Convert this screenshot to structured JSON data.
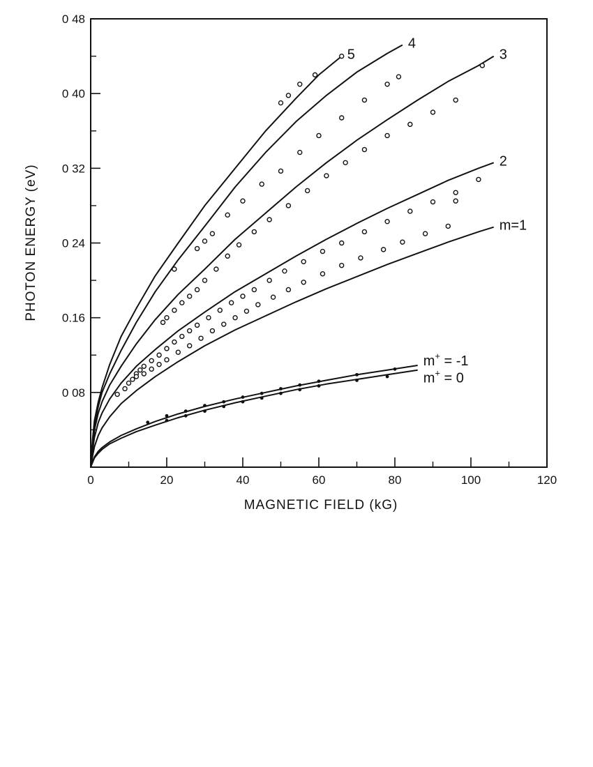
{
  "chart_data": {
    "type": "scatter",
    "title": "",
    "xlabel": "MAGNETIC FIELD (kG)",
    "ylabel": "PHOTON ENERGY (eV)",
    "xlim": [
      0,
      120
    ],
    "ylim": [
      0,
      0.48
    ],
    "x_ticks": [
      0,
      20,
      40,
      60,
      80,
      100,
      120
    ],
    "x_tick_labels": [
      "0",
      "20",
      "40",
      "60",
      "80",
      "100",
      "120"
    ],
    "y_ticks": [
      0.08,
      0.16,
      0.24,
      0.32,
      0.4,
      0.48
    ],
    "y_tick_labels": [
      "0 08",
      "0.16",
      "0 24",
      "0 32",
      "0 40",
      "0 48"
    ],
    "grid": false,
    "legend": "none (curves labelled at their right ends)",
    "series": [
      {
        "label": "5",
        "marker": "open-circle",
        "fit_curve": {
          "x": [
            0,
            0.5,
            1,
            2,
            3,
            5,
            8,
            12,
            17,
            23,
            30,
            38,
            46,
            54,
            60,
            66
          ],
          "y": [
            0.0,
            0.03,
            0.05,
            0.07,
            0.085,
            0.11,
            0.14,
            0.17,
            0.205,
            0.24,
            0.28,
            0.32,
            0.36,
            0.395,
            0.42,
            0.44
          ]
        },
        "points": [
          [
            50,
            0.39
          ],
          [
            52,
            0.398
          ],
          [
            55,
            0.41
          ],
          [
            59,
            0.42
          ],
          [
            66,
            0.44
          ]
        ]
      },
      {
        "label": "4",
        "marker": "open-circle",
        "fit_curve": {
          "x": [
            0,
            0.5,
            1,
            2,
            3,
            5,
            8,
            12,
            17,
            23,
            30,
            38,
            46,
            54,
            62,
            70,
            78,
            82
          ],
          "y": [
            0.0,
            0.025,
            0.045,
            0.065,
            0.08,
            0.1,
            0.125,
            0.155,
            0.188,
            0.222,
            0.258,
            0.3,
            0.337,
            0.37,
            0.398,
            0.423,
            0.443,
            0.452
          ]
        },
        "points": [
          [
            22,
            0.212
          ],
          [
            28,
            0.234
          ],
          [
            30,
            0.242
          ],
          [
            32,
            0.25
          ],
          [
            36,
            0.27
          ],
          [
            40,
            0.285
          ],
          [
            45,
            0.303
          ],
          [
            50,
            0.317
          ],
          [
            55,
            0.337
          ],
          [
            60,
            0.355
          ],
          [
            66,
            0.374
          ],
          [
            72,
            0.393
          ],
          [
            78,
            0.41
          ],
          [
            81,
            0.418
          ]
        ]
      },
      {
        "label": "3",
        "marker": "open-circle",
        "fit_curve": {
          "x": [
            0,
            0.5,
            1,
            2,
            3,
            5,
            8,
            12,
            17,
            23,
            30,
            38,
            46,
            54,
            62,
            70,
            78,
            86,
            94,
            102,
            106
          ],
          "y": [
            0.0,
            0.02,
            0.04,
            0.058,
            0.07,
            0.088,
            0.108,
            0.132,
            0.158,
            0.185,
            0.212,
            0.244,
            0.272,
            0.3,
            0.326,
            0.35,
            0.372,
            0.393,
            0.413,
            0.43,
            0.44
          ]
        },
        "points": [
          [
            19,
            0.155
          ],
          [
            20,
            0.16
          ],
          [
            22,
            0.168
          ],
          [
            24,
            0.176
          ],
          [
            26,
            0.183
          ],
          [
            28,
            0.19
          ],
          [
            30,
            0.2
          ],
          [
            33,
            0.212
          ],
          [
            36,
            0.226
          ],
          [
            39,
            0.238
          ],
          [
            43,
            0.252
          ],
          [
            47,
            0.265
          ],
          [
            52,
            0.28
          ],
          [
            57,
            0.296
          ],
          [
            62,
            0.312
          ],
          [
            67,
            0.326
          ],
          [
            72,
            0.34
          ],
          [
            78,
            0.355
          ],
          [
            84,
            0.367
          ],
          [
            90,
            0.38
          ],
          [
            96,
            0.393
          ],
          [
            103,
            0.43
          ]
        ]
      },
      {
        "label": "2",
        "marker": "open-circle",
        "fit_curve": {
          "x": [
            0,
            0.5,
            1,
            2,
            3,
            5,
            8,
            12,
            17,
            23,
            30,
            38,
            46,
            54,
            62,
            70,
            78,
            86,
            94,
            102,
            106
          ],
          "y": [
            0.0,
            0.018,
            0.032,
            0.048,
            0.058,
            0.073,
            0.09,
            0.108,
            0.126,
            0.146,
            0.166,
            0.188,
            0.207,
            0.226,
            0.244,
            0.261,
            0.277,
            0.292,
            0.307,
            0.32,
            0.326
          ]
        },
        "points": [
          [
            12,
            0.1
          ],
          [
            13,
            0.104
          ],
          [
            14,
            0.108
          ],
          [
            16,
            0.114
          ],
          [
            18,
            0.12
          ],
          [
            20,
            0.127
          ],
          [
            22,
            0.134
          ],
          [
            24,
            0.14
          ],
          [
            26,
            0.146
          ],
          [
            28,
            0.152
          ],
          [
            31,
            0.16
          ],
          [
            34,
            0.168
          ],
          [
            37,
            0.176
          ],
          [
            40,
            0.183
          ],
          [
            43,
            0.19
          ],
          [
            47,
            0.2
          ],
          [
            51,
            0.21
          ],
          [
            56,
            0.22
          ],
          [
            61,
            0.231
          ],
          [
            66,
            0.24
          ],
          [
            72,
            0.252
          ],
          [
            78,
            0.263
          ],
          [
            84,
            0.274
          ],
          [
            90,
            0.284
          ],
          [
            96,
            0.294
          ],
          [
            102,
            0.308
          ]
        ]
      },
      {
        "label": "m=1",
        "marker": "open-circle",
        "fit_curve": {
          "x": [
            0,
            0.5,
            1,
            2,
            3,
            5,
            8,
            12,
            17,
            23,
            30,
            38,
            46,
            54,
            62,
            70,
            78,
            86,
            94,
            102,
            106
          ],
          "y": [
            0.0,
            0.012,
            0.022,
            0.034,
            0.042,
            0.054,
            0.068,
            0.082,
            0.097,
            0.113,
            0.13,
            0.147,
            0.162,
            0.177,
            0.191,
            0.204,
            0.217,
            0.229,
            0.241,
            0.252,
            0.257
          ]
        },
        "points": [
          [
            7,
            0.078
          ],
          [
            9,
            0.084
          ],
          [
            10,
            0.09
          ],
          [
            11,
            0.094
          ],
          [
            12,
            0.097
          ],
          [
            14,
            0.1
          ],
          [
            16,
            0.105
          ],
          [
            18,
            0.11
          ],
          [
            20,
            0.115
          ],
          [
            23,
            0.123
          ],
          [
            26,
            0.13
          ],
          [
            29,
            0.138
          ],
          [
            32,
            0.146
          ],
          [
            35,
            0.153
          ],
          [
            38,
            0.16
          ],
          [
            41,
            0.167
          ],
          [
            44,
            0.174
          ],
          [
            48,
            0.182
          ],
          [
            52,
            0.19
          ],
          [
            56,
            0.198
          ],
          [
            61,
            0.207
          ],
          [
            66,
            0.216
          ],
          [
            71,
            0.224
          ],
          [
            77,
            0.233
          ],
          [
            82,
            0.241
          ],
          [
            88,
            0.25
          ],
          [
            94,
            0.258
          ],
          [
            96,
            0.285
          ]
        ]
      },
      {
        "label": "m+ = -1",
        "marker": "filled-dot",
        "fit_curve": {
          "x": [
            0,
            0.5,
            1,
            2,
            3,
            5,
            8,
            12,
            17,
            23,
            30,
            38,
            46,
            54,
            62,
            70,
            78,
            86
          ],
          "y": [
            0.0,
            0.006,
            0.011,
            0.017,
            0.021,
            0.027,
            0.034,
            0.041,
            0.049,
            0.057,
            0.065,
            0.073,
            0.08,
            0.087,
            0.093,
            0.099,
            0.104,
            0.109
          ]
        },
        "points": [
          [
            15,
            0.048
          ],
          [
            20,
            0.055
          ],
          [
            25,
            0.06
          ],
          [
            30,
            0.066
          ],
          [
            35,
            0.07
          ],
          [
            40,
            0.075
          ],
          [
            45,
            0.079
          ],
          [
            50,
            0.084
          ],
          [
            55,
            0.088
          ],
          [
            60,
            0.092
          ],
          [
            70,
            0.099
          ],
          [
            80,
            0.105
          ]
        ]
      },
      {
        "label": "m+ = 0",
        "marker": "filled-dot",
        "fit_curve": {
          "x": [
            0,
            0.5,
            1,
            2,
            3,
            5,
            8,
            12,
            17,
            23,
            30,
            38,
            46,
            54,
            62,
            70,
            78,
            86
          ],
          "y": [
            0.0,
            0.005,
            0.01,
            0.015,
            0.019,
            0.025,
            0.031,
            0.038,
            0.045,
            0.053,
            0.061,
            0.069,
            0.076,
            0.083,
            0.089,
            0.094,
            0.099,
            0.104
          ]
        },
        "points": [
          [
            20,
            0.05
          ],
          [
            25,
            0.055
          ],
          [
            30,
            0.06
          ],
          [
            35,
            0.065
          ],
          [
            40,
            0.07
          ],
          [
            45,
            0.074
          ],
          [
            50,
            0.079
          ],
          [
            55,
            0.083
          ],
          [
            60,
            0.087
          ],
          [
            70,
            0.093
          ],
          [
            78,
            0.097
          ]
        ]
      }
    ]
  }
}
